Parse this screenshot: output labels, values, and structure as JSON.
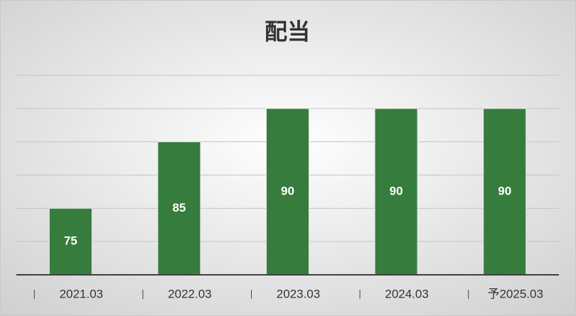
{
  "chart_data": {
    "type": "bar",
    "title": "配当",
    "categories": [
      "2021.03",
      "2022.03",
      "2023.03",
      "2024.03",
      "予2025.03"
    ],
    "values": [
      75,
      85,
      90,
      90,
      90
    ],
    "color": "#367c3d",
    "ylim": [
      65,
      95
    ],
    "yticks": [
      70,
      75,
      80,
      85,
      90,
      95
    ],
    "grid": true
  }
}
